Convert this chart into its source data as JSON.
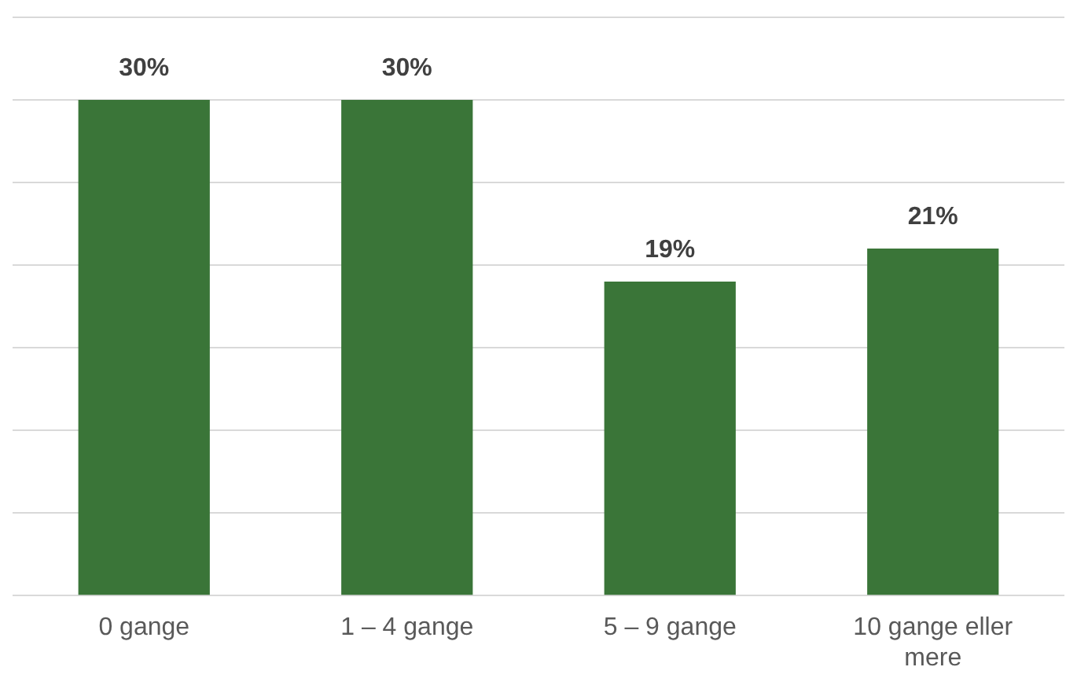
{
  "chart_data": {
    "type": "bar",
    "categories": [
      "0 gange",
      "1 – 4 gange",
      "5 – 9 gange",
      "10 gange eller mere"
    ],
    "values": [
      30,
      30,
      19,
      21
    ],
    "value_labels": [
      "30%",
      "30%",
      "19%",
      "21%"
    ],
    "color": "#3a7538",
    "ylim": [
      0,
      35
    ],
    "yticks": [
      {
        "value": 0,
        "label": null
      },
      {
        "value": 5,
        "label": null
      },
      {
        "value": 10,
        "label": null
      },
      {
        "value": 15,
        "label": null
      },
      {
        "value": 20,
        "label": null
      },
      {
        "value": 25,
        "label": null
      },
      {
        "value": 30,
        "label": null
      },
      {
        "value": 35,
        "label": null
      }
    ],
    "tick_labels": "x",
    "grid": "y"
  }
}
